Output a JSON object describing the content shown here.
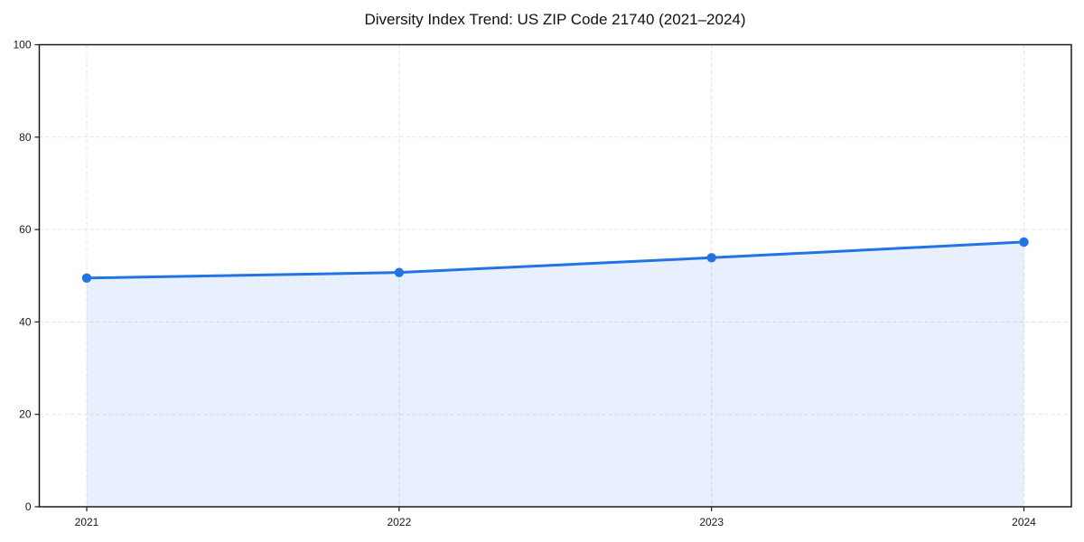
{
  "chart": {
    "title": "Diversity Index Trend: US ZIP Code 21740 (2021–2024)"
  },
  "chart_data": {
    "type": "line",
    "title": "Diversity Index Trend: US ZIP Code 21740 (2021–2024)",
    "categories": [
      "2021",
      "2022",
      "2023",
      "2024"
    ],
    "series": [
      {
        "name": "Diversity Index",
        "values": [
          49.5,
          50.7,
          53.9,
          57.3
        ]
      }
    ],
    "xlabel": "",
    "ylabel": "",
    "ylim": [
      0,
      100
    ],
    "yticks": [
      0,
      20,
      40,
      60,
      80,
      100
    ],
    "grid": true,
    "grid_style": "dashed",
    "legend": "none",
    "marker": "circle",
    "colors": {
      "line": "#2273E6",
      "marker": "#2273E6",
      "area_fill": "rgba(34,115,230,0.11)",
      "grid": "#e2e2e2",
      "spine": "#1a1a1a",
      "tick_label": "#1a1a1a",
      "background": "#ffffff"
    }
  }
}
